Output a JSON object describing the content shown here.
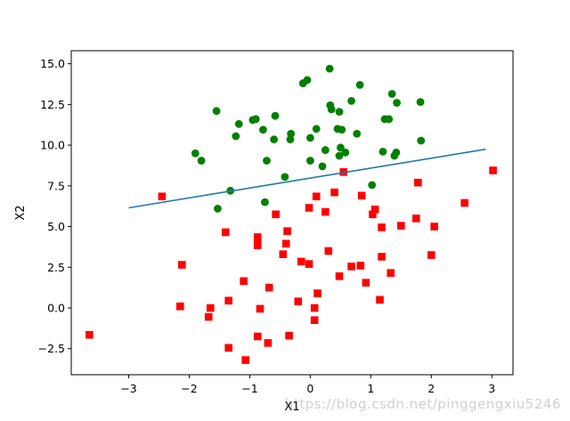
{
  "chart_data": {
    "type": "scatter",
    "xlabel": "X1",
    "ylabel": "X2",
    "xlim": [
      -3.95,
      3.35
    ],
    "ylim": [
      -4.1,
      15.8
    ],
    "x_ticks": [
      -3,
      -2,
      -1,
      0,
      1,
      2,
      3
    ],
    "y_ticks": [
      -2.5,
      0.0,
      2.5,
      5.0,
      7.5,
      10.0,
      12.5,
      15.0
    ],
    "grid": false,
    "colors": {
      "class1": "#008000",
      "class0": "#ff0000",
      "line": "#1f77b4"
    },
    "series": [
      {
        "marker": "circle",
        "color": "#008000",
        "points": [
          [
            0.32,
            14.7
          ],
          [
            -0.05,
            14.0
          ],
          [
            -0.12,
            13.8
          ],
          [
            0.82,
            13.7
          ],
          [
            1.35,
            13.15
          ],
          [
            1.43,
            12.6
          ],
          [
            1.82,
            12.65
          ],
          [
            0.68,
            12.72
          ],
          [
            0.33,
            12.45
          ],
          [
            0.35,
            12.2
          ],
          [
            0.48,
            12.05
          ],
          [
            -0.58,
            11.8
          ],
          [
            -1.55,
            12.1
          ],
          [
            -0.95,
            11.55
          ],
          [
            -0.9,
            11.6
          ],
          [
            -1.18,
            11.3
          ],
          [
            1.23,
            11.6
          ],
          [
            1.3,
            11.6
          ],
          [
            0.1,
            11.0
          ],
          [
            0.45,
            11.0
          ],
          [
            0.52,
            10.95
          ],
          [
            -0.78,
            10.95
          ],
          [
            -1.23,
            10.55
          ],
          [
            -0.32,
            10.7
          ],
          [
            -0.6,
            10.35
          ],
          [
            -0.33,
            10.35
          ],
          [
            0.0,
            10.45
          ],
          [
            0.77,
            10.7
          ],
          [
            1.83,
            10.28
          ],
          [
            0.5,
            9.85
          ],
          [
            0.25,
            9.7
          ],
          [
            0.58,
            9.55
          ],
          [
            0.48,
            9.35
          ],
          [
            1.2,
            9.6
          ],
          [
            1.42,
            9.55
          ],
          [
            1.39,
            9.35
          ],
          [
            -1.9,
            9.5
          ],
          [
            -1.8,
            9.05
          ],
          [
            -0.72,
            9.05
          ],
          [
            0.0,
            9.05
          ],
          [
            0.2,
            8.7
          ],
          [
            -0.42,
            8.05
          ],
          [
            1.02,
            7.55
          ],
          [
            -1.32,
            7.2
          ],
          [
            -0.75,
            6.5
          ],
          [
            -1.53,
            6.1
          ]
        ]
      },
      {
        "marker": "square",
        "color": "#ff0000",
        "points": [
          [
            3.02,
            8.45
          ],
          [
            0.55,
            8.35
          ],
          [
            1.78,
            7.7
          ],
          [
            -2.45,
            6.85
          ],
          [
            0.4,
            7.1
          ],
          [
            0.1,
            6.85
          ],
          [
            0.85,
            6.9
          ],
          [
            2.55,
            6.45
          ],
          [
            -0.02,
            6.15
          ],
          [
            1.07,
            6.05
          ],
          [
            0.25,
            5.9
          ],
          [
            1.03,
            5.75
          ],
          [
            -0.57,
            5.75
          ],
          [
            1.75,
            5.5
          ],
          [
            2.05,
            5.0
          ],
          [
            1.5,
            5.05
          ],
          [
            1.18,
            4.95
          ],
          [
            -1.4,
            4.65
          ],
          [
            -0.38,
            4.72
          ],
          [
            -0.87,
            4.35
          ],
          [
            -0.87,
            4.15
          ],
          [
            -0.87,
            3.85
          ],
          [
            -0.4,
            3.95
          ],
          [
            0.3,
            3.5
          ],
          [
            -0.45,
            3.3
          ],
          [
            2.0,
            3.25
          ],
          [
            1.18,
            3.15
          ],
          [
            -0.15,
            2.85
          ],
          [
            -0.02,
            2.7
          ],
          [
            0.68,
            2.55
          ],
          [
            0.83,
            2.6
          ],
          [
            -2.12,
            2.65
          ],
          [
            1.33,
            2.15
          ],
          [
            0.48,
            1.95
          ],
          [
            0.92,
            1.55
          ],
          [
            -1.1,
            1.65
          ],
          [
            -0.68,
            1.25
          ],
          [
            0.12,
            0.9
          ],
          [
            1.15,
            0.5
          ],
          [
            -1.35,
            0.45
          ],
          [
            -0.2,
            0.4
          ],
          [
            -2.15,
            0.1
          ],
          [
            -1.65,
            0.0
          ],
          [
            0.07,
            0.0
          ],
          [
            -0.83,
            -0.05
          ],
          [
            -1.68,
            -0.55
          ],
          [
            0.07,
            -0.75
          ],
          [
            -3.65,
            -1.65
          ],
          [
            -0.87,
            -1.75
          ],
          [
            -0.35,
            -1.7
          ],
          [
            -0.7,
            -2.15
          ],
          [
            -1.35,
            -2.45
          ],
          [
            -1.07,
            -3.2
          ]
        ]
      }
    ],
    "line": {
      "x": [
        -3.0,
        2.9
      ],
      "y": [
        6.15,
        9.75
      ]
    }
  },
  "watermark": "https://blog.csdn.net/pinggengxiu5246"
}
